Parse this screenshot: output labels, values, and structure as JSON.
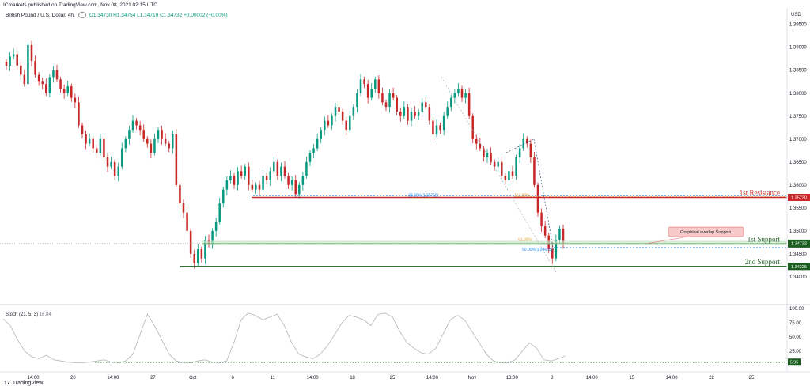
{
  "header": {
    "published": "ICmarkets published on TradingView.com, Nov 08, 2021 02:15 UTC"
  },
  "symbol": {
    "title": "British Pound / U.S. Dollar, 4h,",
    "ohlc_text": "O1.34730 H1.34754 L1.34719 C1.34732 +0.00002 (+0.00%)"
  },
  "currency": "USD",
  "stoch": {
    "label": "Stoch (21, 5, 3)",
    "value": "16.84"
  },
  "brand": "TradingView",
  "colors": {
    "bull": "#089981",
    "bear": "#c62828",
    "resistance": "#c62828",
    "support": "#1b5e20",
    "support_fill": "#c8e6c9",
    "stoch": "#b2b5be",
    "fib_blue": "#1e88e5",
    "fib_orange": "#e6a23c"
  },
  "chart_data": [
    {
      "type": "candlestick",
      "title": "British Pound / U.S. Dollar, 4h",
      "ylim": [
        1.3355,
        1.3965
      ],
      "y_ticks": [
        1.34,
        1.345,
        1.35,
        1.355,
        1.36,
        1.365,
        1.37,
        1.375,
        1.38,
        1.385,
        1.39,
        1.395
      ],
      "y_tick_labels": [
        "1.34000",
        "1.34500",
        "1.35000",
        "1.35500",
        "1.36000",
        "1.36500",
        "1.37000",
        "1.37500",
        "1.38000",
        "1.38500",
        "1.39000",
        "1.39500"
      ],
      "x_tick_labels": [
        "14:00",
        "20",
        "14:00",
        "27",
        "Oct",
        "6",
        "11",
        "14:00",
        "18",
        "25",
        "14:00",
        "Nov",
        "13:00",
        "8",
        "14:00",
        "15",
        "14:00",
        "22",
        "25"
      ],
      "close_path": [
        1.386,
        1.388,
        1.3885,
        1.386,
        1.384,
        1.382,
        1.3905,
        1.387,
        1.384,
        1.3825,
        1.382,
        1.38,
        1.3835,
        1.385,
        1.383,
        1.381,
        1.38,
        1.3815,
        1.379,
        1.378,
        1.373,
        1.371,
        1.369,
        1.37,
        1.368,
        1.367,
        1.37,
        1.366,
        1.364,
        1.365,
        1.362,
        1.364,
        1.368,
        1.37,
        1.372,
        1.374,
        1.373,
        1.372,
        1.37,
        1.369,
        1.367,
        1.37,
        1.372,
        1.37,
        1.369,
        1.368,
        1.371,
        1.36,
        1.356,
        1.354,
        1.35,
        1.345,
        1.343,
        1.346,
        1.344,
        1.348,
        1.347,
        1.35,
        1.352,
        1.356,
        1.359,
        1.361,
        1.362,
        1.36,
        1.363,
        1.362,
        1.364,
        1.36,
        1.359,
        1.36,
        1.359,
        1.362,
        1.361,
        1.363,
        1.365,
        1.362,
        1.364,
        1.362,
        1.36,
        1.361,
        1.358,
        1.36,
        1.362,
        1.365,
        1.367,
        1.368,
        1.37,
        1.372,
        1.374,
        1.373,
        1.375,
        1.377,
        1.376,
        1.374,
        1.372,
        1.375,
        1.377,
        1.38,
        1.383,
        1.382,
        1.379,
        1.381,
        1.383,
        1.38,
        1.378,
        1.377,
        1.38,
        1.379,
        1.376,
        1.375,
        1.377,
        1.374,
        1.376,
        1.375,
        1.376,
        1.378,
        1.377,
        1.374,
        1.371,
        1.373,
        1.372,
        1.375,
        1.377,
        1.379,
        1.38,
        1.381,
        1.379,
        1.38,
        1.375,
        1.37,
        1.369,
        1.368,
        1.366,
        1.367,
        1.365,
        1.364,
        1.365,
        1.362,
        1.361,
        1.363,
        1.362,
        1.366,
        1.368,
        1.37,
        1.369,
        1.366,
        1.36,
        1.354,
        1.351,
        1.349,
        1.346,
        1.344,
        1.348,
        1.3505,
        1.3473
      ],
      "levels": [
        {
          "label": "1st Resistance",
          "price": 1.3573,
          "price_label": "1.35730"
        },
        {
          "label": "1st Support",
          "price": 1.34715,
          "price_label": "1.34715"
        },
        {
          "label": "2nd Support",
          "price": 1.34225,
          "price_label": "1.34225"
        }
      ],
      "current_price": {
        "price": 1.34732,
        "label": "1.34732"
      },
      "fib_labels": [
        {
          "text": "38.20%(1.35768)",
          "price": 1.35768
        },
        {
          "text": "161.80%",
          "price": 1.35768
        },
        {
          "text": "61.80%",
          "price": 1.3478
        },
        {
          "text": "50.00%(1.34603)",
          "price": 1.34603
        }
      ],
      "annotation": "Graphical overlap Support"
    },
    {
      "type": "line",
      "title": "Stoch (21, 5, 3)",
      "ylim": [
        0,
        100
      ],
      "y_ticks": [
        25,
        50,
        75,
        100
      ],
      "y_tick_labels": [
        "25.00",
        "50.00",
        "75.00",
        "100.00"
      ],
      "values": [
        82,
        70,
        45,
        25,
        15,
        12,
        18,
        10,
        8,
        6,
        5,
        5,
        6,
        8,
        10,
        6,
        5,
        8,
        20,
        55,
        90,
        70,
        45,
        20,
        8,
        5,
        5,
        8,
        10,
        6,
        5,
        8,
        40,
        80,
        92,
        88,
        80,
        85,
        90,
        70,
        40,
        20,
        15,
        12,
        20,
        35,
        55,
        75,
        88,
        85,
        80,
        70,
        90,
        92,
        85,
        60,
        40,
        30,
        22,
        20,
        30,
        55,
        80,
        88,
        80,
        60,
        40,
        20,
        8,
        5,
        5,
        10,
        25,
        40,
        30,
        10,
        8,
        12,
        17
      ],
      "oversold_level": 5.95,
      "oversold_label": "5.95"
    }
  ]
}
